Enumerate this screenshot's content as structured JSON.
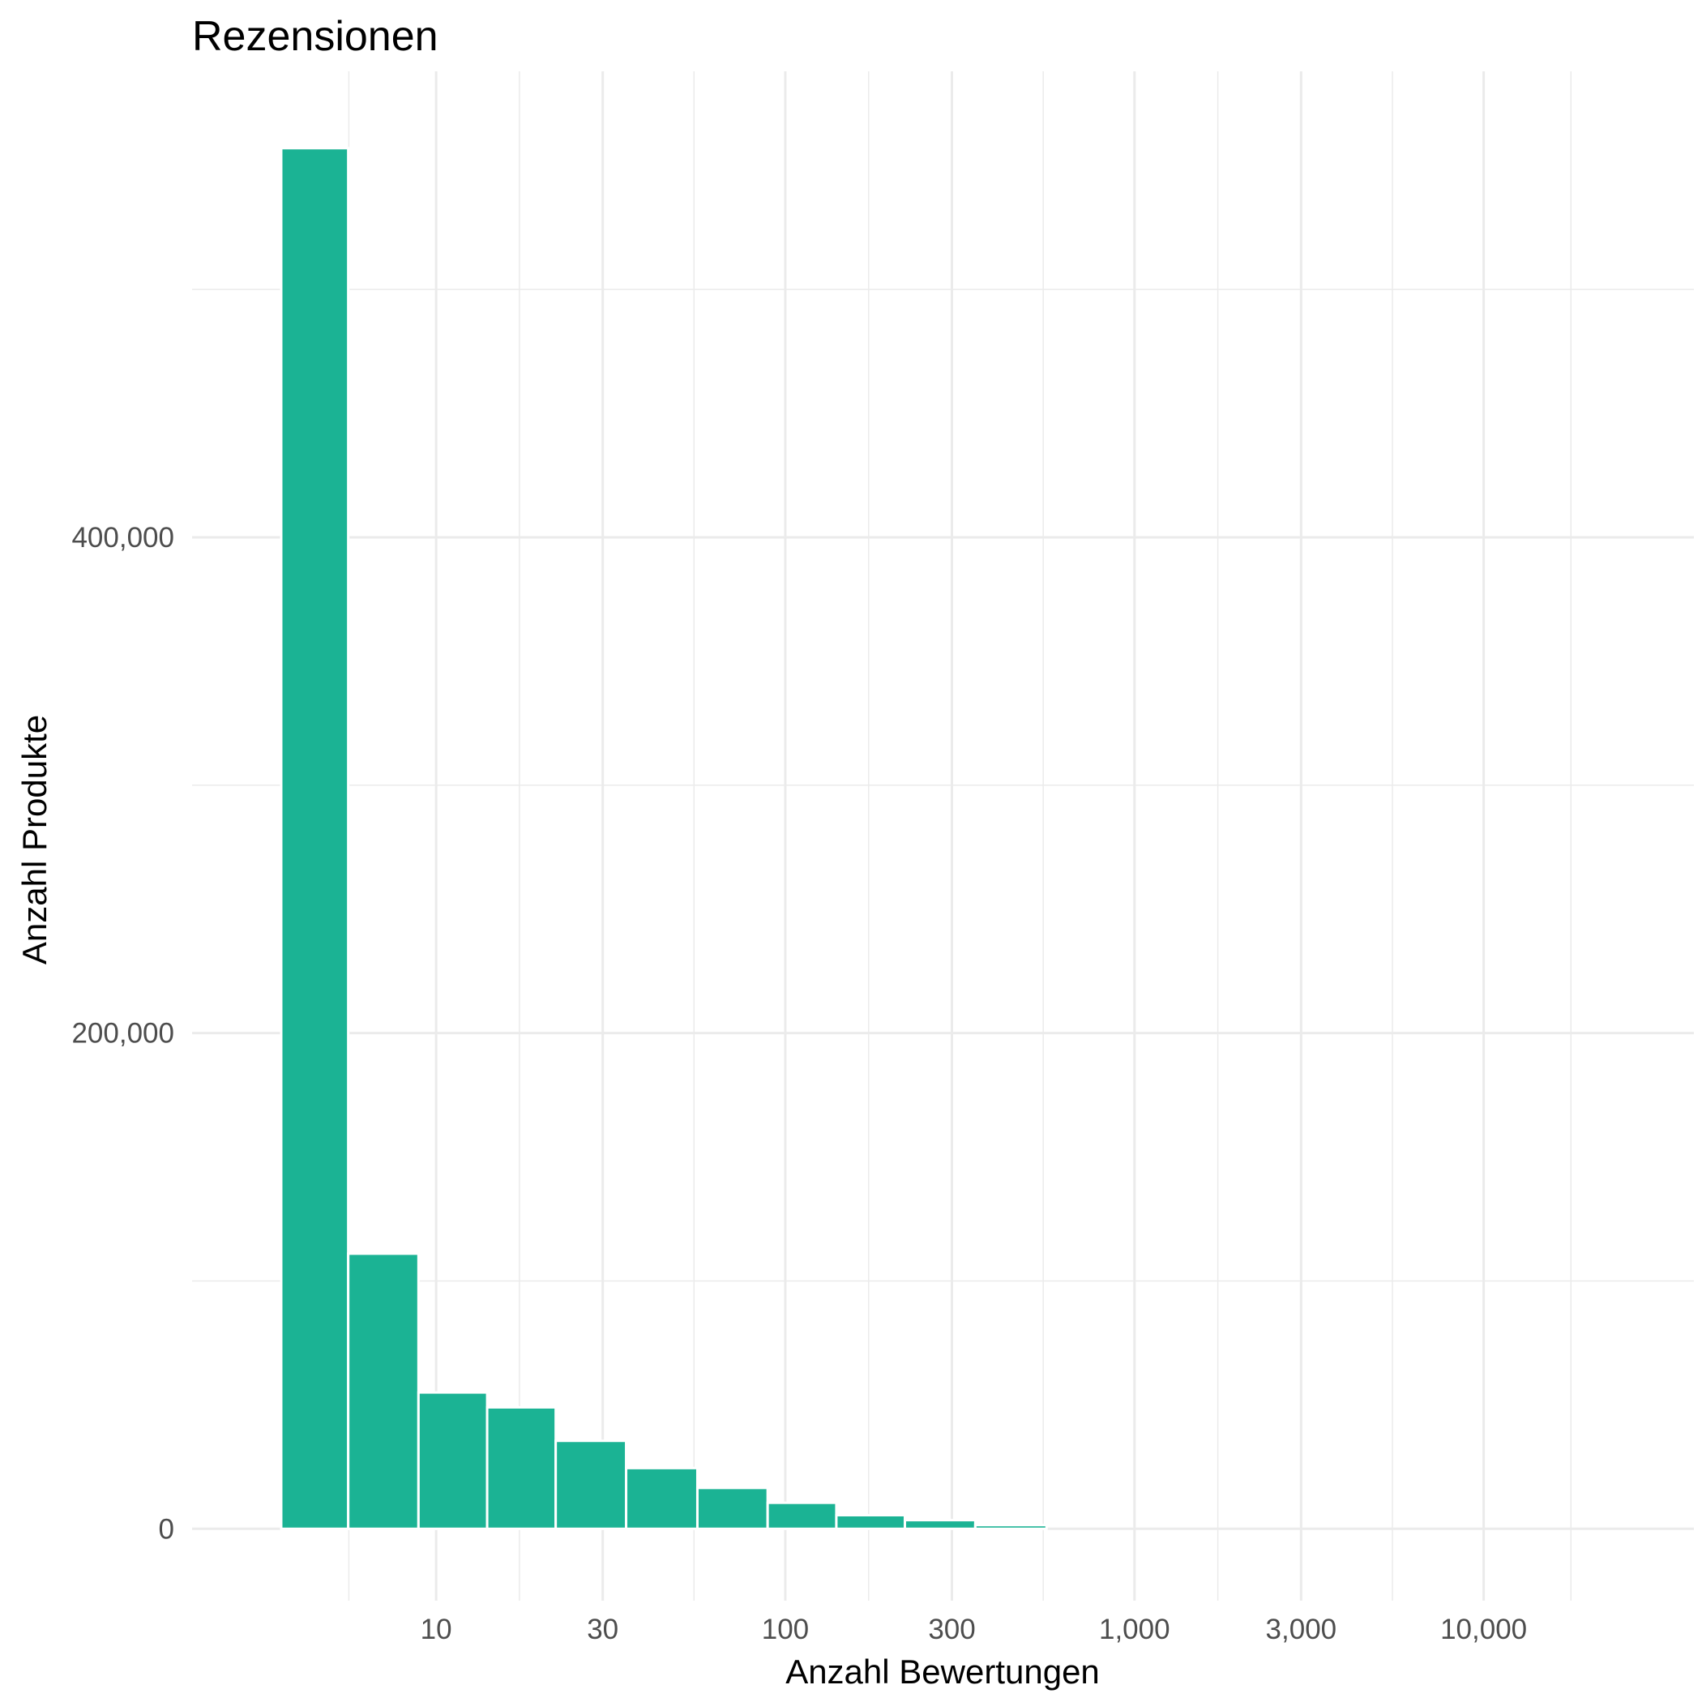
{
  "chart_data": {
    "type": "bar",
    "title": "Rezensionen",
    "xlabel": "Anzahl Bewertungen",
    "ylabel": "Anzahl Produkte",
    "x_scale": "log10",
    "xlim": [
      2.0,
      40000
    ],
    "ylim": [
      -29000,
      588000
    ],
    "x_ticks": [
      {
        "value": 10,
        "label": "10"
      },
      {
        "value": 30,
        "label": "30"
      },
      {
        "value": 100,
        "label": "100"
      },
      {
        "value": 300,
        "label": "300"
      },
      {
        "value": 1000,
        "label": "1,000"
      },
      {
        "value": 3000,
        "label": "3,000"
      },
      {
        "value": 10000,
        "label": "10,000"
      }
    ],
    "y_ticks": [
      {
        "value": 0,
        "label": "0"
      },
      {
        "value": 200000,
        "label": "200,000"
      },
      {
        "value": 400000,
        "label": "400,000"
      }
    ],
    "bar_color": "#1bb394",
    "bins": [
      {
        "from": 3.6,
        "to": 5.6,
        "value": 557000
      },
      {
        "from": 5.6,
        "to": 8.9,
        "value": 111000
      },
      {
        "from": 8.9,
        "to": 14,
        "value": 55000
      },
      {
        "from": 14,
        "to": 22,
        "value": 49000
      },
      {
        "from": 22,
        "to": 35,
        "value": 35500
      },
      {
        "from": 35,
        "to": 56,
        "value": 24500
      },
      {
        "from": 56,
        "to": 89,
        "value": 16500
      },
      {
        "from": 89,
        "to": 140,
        "value": 10500
      },
      {
        "from": 140,
        "to": 220,
        "value": 5500
      },
      {
        "from": 220,
        "to": 350,
        "value": 3500
      },
      {
        "from": 350,
        "to": 560,
        "value": 1500
      }
    ],
    "grid": true,
    "legend": "none"
  }
}
